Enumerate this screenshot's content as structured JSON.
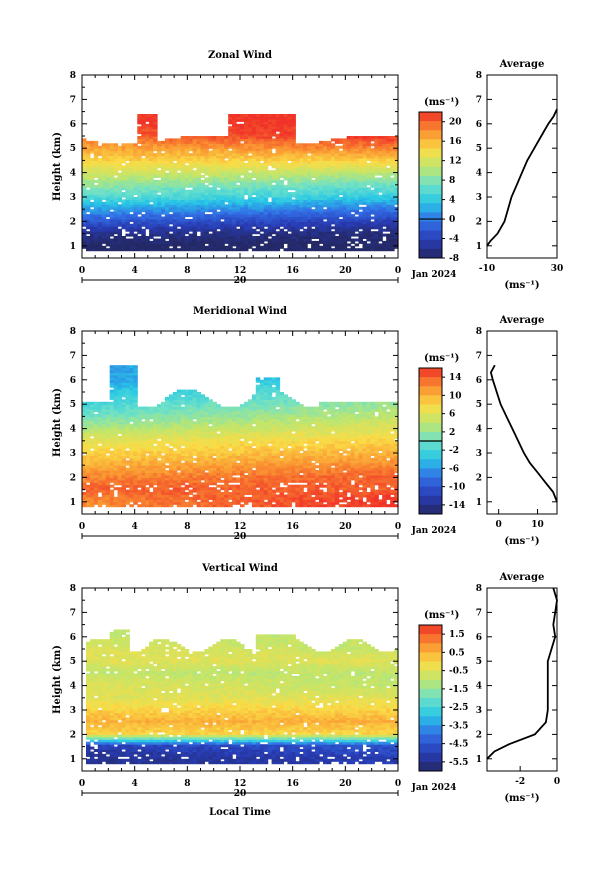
{
  "chart_data": [
    {
      "type": "heatmap",
      "title": "Zonal Wind",
      "ylabel": "Height (km)",
      "xlabel": "",
      "date_label": "Jan 2024",
      "day_label": "20",
      "x_ticks": [
        "0",
        "4",
        "8",
        "12",
        "16",
        "20",
        "0"
      ],
      "y_ticks": [
        "1",
        "2",
        "3",
        "4",
        "5",
        "6",
        "7",
        "8"
      ],
      "xlim": [
        0,
        24
      ],
      "ylim": [
        0.5,
        8
      ],
      "unit": "(ms⁻¹)",
      "colorbar": {
        "min": -8,
        "max": 22,
        "ticks": [
          "20",
          "16",
          "12",
          "8",
          "4",
          "0",
          "-4",
          "-8"
        ],
        "tick_values": [
          20,
          16,
          12,
          8,
          4,
          0,
          -4,
          -8
        ]
      },
      "values_by_height": {
        "heights": [
          1.0,
          1.5,
          2.0,
          2.5,
          3.0,
          3.5,
          4.0,
          4.5,
          5.0,
          5.5,
          6.0
        ],
        "early_hours": [
          -8,
          -6,
          -2,
          2,
          6,
          9,
          12,
          15,
          17,
          20,
          22
        ],
        "late_hours": [
          -8,
          -7,
          -4,
          0,
          4,
          7,
          11,
          15,
          19,
          22,
          22
        ]
      },
      "average_profile": {
        "title": "Average",
        "xlabel": "(ms⁻¹)",
        "x_ticks": [
          "-10",
          "30"
        ],
        "xlim": [
          -10,
          30
        ],
        "heights": [
          1.0,
          1.2,
          1.5,
          2.0,
          2.5,
          3.0,
          3.5,
          4.0,
          4.5,
          5.0,
          5.5,
          6.0,
          6.3,
          6.6
        ],
        "values": [
          -10,
          -8,
          -4,
          0,
          2,
          4,
          7,
          10,
          13,
          17,
          21,
          25,
          28,
          30
        ]
      }
    },
    {
      "type": "heatmap",
      "title": "Meridional Wind",
      "ylabel": "Height (km)",
      "xlabel": "",
      "date_label": "Jan 2024",
      "day_label": "20",
      "x_ticks": [
        "0",
        "4",
        "8",
        "12",
        "16",
        "20",
        "0"
      ],
      "y_ticks": [
        "1",
        "2",
        "3",
        "4",
        "5",
        "6",
        "7",
        "8"
      ],
      "xlim": [
        0,
        24
      ],
      "ylim": [
        0.5,
        8
      ],
      "unit": "(ms⁻¹)",
      "colorbar": {
        "min": -16,
        "max": 16,
        "ticks": [
          "14",
          "10",
          "6",
          "2",
          "-2",
          "-6",
          "-10",
          "-14"
        ],
        "tick_values": [
          14,
          10,
          6,
          2,
          -2,
          -6,
          -10,
          -14
        ]
      },
      "values_by_height": {
        "heights": [
          1.0,
          1.5,
          2.0,
          2.5,
          3.0,
          3.5,
          4.0,
          4.5,
          5.0,
          5.5,
          6.0
        ],
        "early_hours": [
          12,
          14,
          12,
          10,
          8,
          6,
          3,
          0,
          -2,
          -4,
          -6
        ],
        "late_hours": [
          16,
          14,
          14,
          12,
          10,
          8,
          6,
          4,
          2,
          0,
          -2
        ]
      },
      "average_profile": {
        "title": "Average",
        "xlabel": "(ms⁻¹)",
        "x_ticks": [
          "0",
          "10"
        ],
        "xlim": [
          -3,
          15
        ],
        "heights": [
          1.0,
          1.4,
          1.8,
          2.2,
          2.6,
          3.0,
          3.5,
          4.0,
          4.5,
          5.0,
          5.5,
          6.0,
          6.3,
          6.6
        ],
        "values": [
          15,
          14,
          12,
          10,
          8,
          6.5,
          5,
          3.5,
          2,
          0.5,
          -0.5,
          -1.5,
          -2,
          -1
        ]
      }
    },
    {
      "type": "heatmap",
      "title": "Vertical Wind",
      "ylabel": "Height (km)",
      "xlabel": "Local Time",
      "date_label": "Jan 2024",
      "day_label": "20",
      "x_ticks": [
        "0",
        "4",
        "8",
        "12",
        "16",
        "20",
        "0"
      ],
      "y_ticks": [
        "1",
        "2",
        "3",
        "4",
        "5",
        "6",
        "7",
        "8"
      ],
      "xlim": [
        0,
        24
      ],
      "ylim": [
        0.5,
        8
      ],
      "unit": "(ms⁻¹)",
      "colorbar": {
        "min": -6,
        "max": 2,
        "ticks": [
          "1.5",
          "0.5",
          "-0.5",
          "-1.5",
          "-2.5",
          "-3.5",
          "-4.5",
          "-5.5"
        ],
        "tick_values": [
          1.5,
          0.5,
          -0.5,
          -1.5,
          -2.5,
          -3.5,
          -4.5,
          -5.5
        ]
      },
      "values_by_height": {
        "heights": [
          1.0,
          1.5,
          2.0,
          2.5,
          3.0,
          3.5,
          4.0,
          4.5,
          5.0,
          5.5,
          6.0
        ],
        "early_hours": [
          -5.5,
          -5.0,
          0.0,
          0.5,
          0.0,
          -0.5,
          -0.5,
          -1.0,
          -0.5,
          -0.5,
          -1.0
        ],
        "late_hours": [
          -5.0,
          -4.5,
          0.0,
          0.5,
          0.0,
          -0.5,
          -1.0,
          -1.0,
          -0.5,
          -1.0,
          -1.0
        ]
      },
      "average_profile": {
        "title": "Average",
        "xlabel": "(ms⁻¹)",
        "x_ticks": [
          "-2",
          "0"
        ],
        "xlim": [
          -3.8,
          0
        ],
        "heights": [
          1.0,
          1.3,
          1.6,
          2.0,
          2.5,
          3.0,
          4.0,
          5.0,
          5.5,
          6.0,
          6.5,
          7.0,
          7.5,
          8.0
        ],
        "values": [
          -3.8,
          -3.4,
          -2.6,
          -1.2,
          -0.6,
          -0.5,
          -0.5,
          -0.5,
          -0.3,
          -0.1,
          -0.2,
          -0.1,
          0,
          -0.2
        ]
      }
    }
  ]
}
